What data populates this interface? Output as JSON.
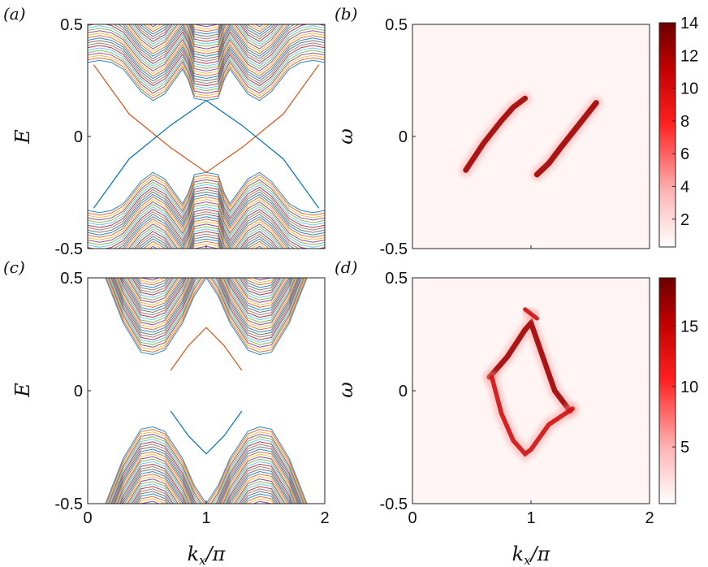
{
  "chart_data": [
    {
      "panel": "(a)",
      "type": "line",
      "ylabel": "E",
      "xlabel": "",
      "xlim": [
        0,
        2
      ],
      "ylim": [
        -0.5,
        0.5
      ],
      "xticks": [
        "0",
        "1",
        "2"
      ],
      "yticks": [
        "-0.5",
        "0",
        "0.5"
      ],
      "x_tick_values": [
        0,
        1,
        2
      ],
      "y_tick_values": [
        -0.5,
        0,
        0.5
      ],
      "show_x_ticklabels": false,
      "bulk_band_edge": {
        "x": [
          0,
          0.1,
          0.2,
          0.3,
          0.45,
          0.55,
          0.65,
          0.8,
          0.85,
          0.9,
          1.0,
          1.1,
          1.15,
          1.2,
          1.35,
          1.45,
          1.55,
          1.7,
          1.8,
          1.9,
          2.0
        ],
        "y": [
          0.33,
          0.34,
          0.33,
          0.3,
          0.2,
          0.16,
          0.19,
          0.3,
          0.25,
          0.17,
          0.16,
          0.17,
          0.25,
          0.3,
          0.19,
          0.16,
          0.2,
          0.3,
          0.33,
          0.34,
          0.33
        ]
      },
      "edge_states": [
        {
          "name": "",
          "color": "#d95319",
          "x": [
            0.05,
            0.35,
            0.7,
            1.0,
            1.3,
            1.65,
            1.95
          ],
          "y": [
            0.32,
            0.1,
            -0.05,
            -0.16,
            -0.05,
            0.1,
            0.32
          ]
        },
        {
          "name": "",
          "color": "#0072bd",
          "x": [
            0.05,
            0.35,
            0.7,
            1.0,
            1.3,
            1.65,
            1.95
          ],
          "y": [
            -0.32,
            -0.1,
            0.05,
            0.16,
            0.05,
            -0.1,
            -0.32
          ]
        }
      ]
    },
    {
      "panel": "(b)",
      "type": "heatmap",
      "ylabel": "ω",
      "xlabel": "",
      "xlim": [
        0,
        2
      ],
      "ylim": [
        -0.5,
        0.5
      ],
      "xticks": [
        "0",
        "1",
        "2"
      ],
      "yticks": [
        "-0.5",
        "0",
        "0.5"
      ],
      "x_tick_values": [
        0,
        1,
        2
      ],
      "y_tick_values": [
        -0.5,
        0,
        0.5
      ],
      "show_x_ticklabels": false,
      "colorbar_range": [
        0.3,
        14
      ],
      "colorbar_ticks": [
        "2",
        "4",
        "6",
        "8",
        "10",
        "12",
        "14"
      ],
      "colorbar_tick_values": [
        2,
        4,
        6,
        8,
        10,
        12,
        14
      ],
      "ridges": [
        {
          "x": [
            0.45,
            0.6,
            0.75,
            0.85,
            0.95
          ],
          "y": [
            -0.15,
            -0.03,
            0.07,
            0.13,
            0.17
          ],
          "intensity": 13
        },
        {
          "x": [
            1.05,
            1.15,
            1.25,
            1.4,
            1.55
          ],
          "y": [
            -0.17,
            -0.12,
            -0.05,
            0.05,
            0.15
          ],
          "intensity": 14
        }
      ]
    },
    {
      "panel": "(c)",
      "type": "line",
      "ylabel": "E",
      "xlabel": "k_x/π",
      "xlim": [
        0,
        2
      ],
      "ylim": [
        -0.5,
        0.5
      ],
      "xticks": [
        "0",
        "1",
        "2"
      ],
      "yticks": [
        "-0.5",
        "0",
        "0.5"
      ],
      "x_tick_values": [
        0,
        1,
        2
      ],
      "y_tick_values": [
        -0.5,
        0,
        0.5
      ],
      "show_x_ticklabels": true,
      "bulk_band_edge": {
        "x": [
          0.15,
          0.3,
          0.45,
          0.55,
          0.65,
          0.8,
          0.9,
          1.0,
          1.1,
          1.2,
          1.35,
          1.45,
          1.55,
          1.7,
          1.85
        ],
        "y": [
          0.5,
          0.3,
          0.17,
          0.16,
          0.18,
          0.3,
          0.42,
          0.5,
          0.42,
          0.3,
          0.18,
          0.16,
          0.17,
          0.3,
          0.5
        ]
      },
      "edge_states": [
        {
          "name": "",
          "color": "#d95319",
          "x": [
            0.7,
            0.85,
            1.0,
            1.15,
            1.3
          ],
          "y": [
            0.09,
            0.2,
            0.28,
            0.2,
            0.09
          ]
        },
        {
          "name": "",
          "color": "#0072bd",
          "x": [
            0.7,
            0.85,
            1.0,
            1.15,
            1.3
          ],
          "y": [
            -0.09,
            -0.2,
            -0.28,
            -0.2,
            -0.09
          ]
        }
      ]
    },
    {
      "panel": "(d)",
      "type": "heatmap",
      "ylabel": "ω",
      "xlabel": "k_x/π",
      "xlim": [
        0,
        2
      ],
      "ylim": [
        -0.5,
        0.5
      ],
      "xticks": [
        "0",
        "1",
        "2"
      ],
      "yticks": [
        "-0.5",
        "0",
        "0.5"
      ],
      "x_tick_values": [
        0,
        1,
        2
      ],
      "y_tick_values": [
        -0.5,
        0,
        0.5
      ],
      "show_x_ticklabels": true,
      "colorbar_range": [
        0.3,
        19
      ],
      "colorbar_ticks": [
        "5",
        "10",
        "15"
      ],
      "colorbar_tick_values": [
        5,
        10,
        15
      ],
      "ridges": [
        {
          "x": [
            0.65,
            0.8,
            0.95,
            1.0,
            1.1,
            1.2,
            1.33
          ],
          "y": [
            0.06,
            0.15,
            0.27,
            0.3,
            0.15,
            0.0,
            -0.09
          ],
          "intensity": 17
        },
        {
          "x": [
            0.67,
            0.75,
            0.85,
            0.95,
            1.0,
            1.15,
            1.35
          ],
          "y": [
            0.06,
            -0.1,
            -0.22,
            -0.28,
            -0.26,
            -0.15,
            -0.08
          ],
          "intensity": 12
        },
        {
          "x": [
            0.95,
            1.05
          ],
          "y": [
            0.36,
            0.32
          ],
          "intensity": 10
        }
      ]
    }
  ]
}
